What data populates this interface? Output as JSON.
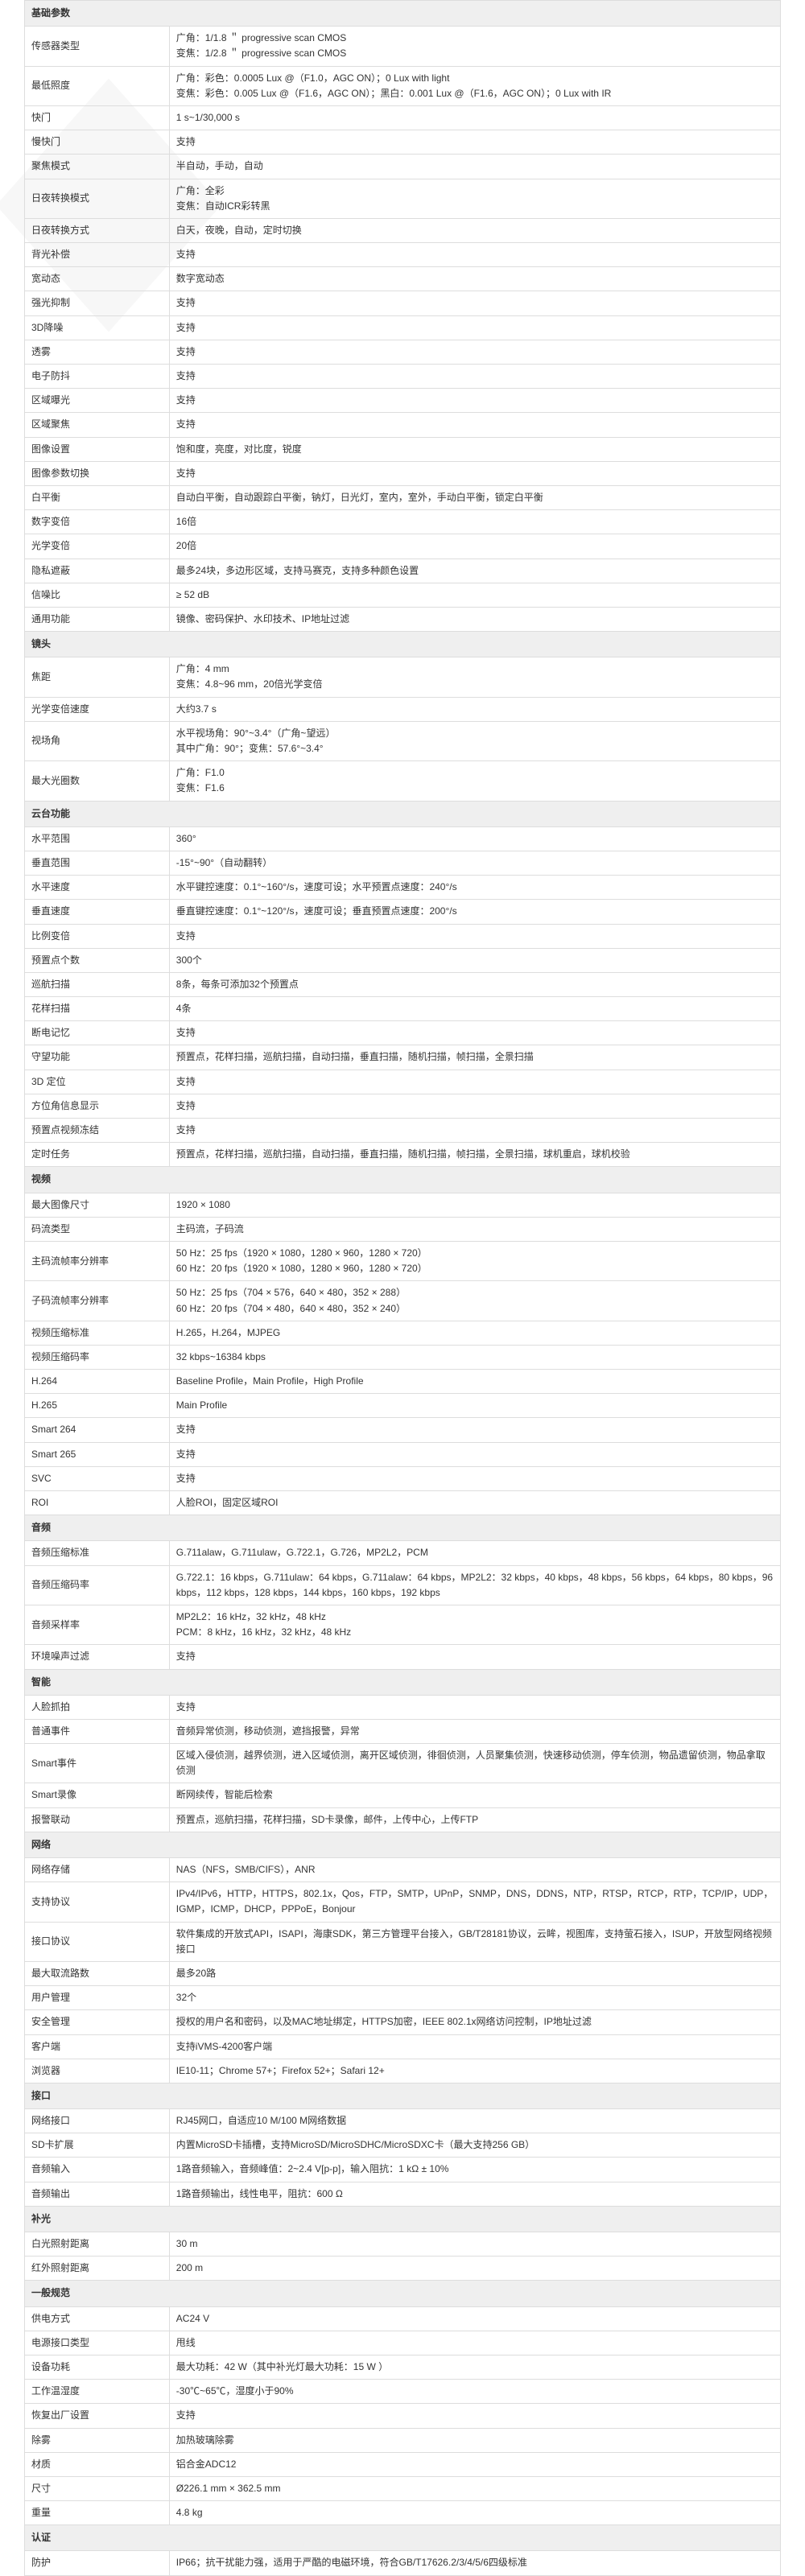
{
  "sections": [
    {
      "title": "基础参数",
      "rows": [
        {
          "label": "传感器类型",
          "value": "广角：1/1.8 ＂ progressive scan CMOS\n变焦：1/2.8 ＂ progressive scan CMOS"
        },
        {
          "label": "最低照度",
          "value": "广角：彩色：0.0005 Lux @（F1.0，AGC ON）；0 Lux with light\n变焦：彩色：0.005 Lux @（F1.6，AGC ON）；黑白：0.001 Lux @（F1.6，AGC ON）；0 Lux with IR"
        },
        {
          "label": "快门",
          "value": "1 s~1/30,000 s"
        },
        {
          "label": "慢快门",
          "value": "支持"
        },
        {
          "label": "聚焦模式",
          "value": "半自动，手动，自动"
        },
        {
          "label": "日夜转换模式",
          "value": "广角：全彩\n变焦：自动ICR彩转黑"
        },
        {
          "label": "日夜转换方式",
          "value": "白天，夜晚，自动，定时切换"
        },
        {
          "label": "背光补偿",
          "value": "支持"
        },
        {
          "label": "宽动态",
          "value": "数字宽动态"
        },
        {
          "label": "强光抑制",
          "value": "支持"
        },
        {
          "label": "3D降噪",
          "value": "支持"
        },
        {
          "label": "透雾",
          "value": "支持"
        },
        {
          "label": "电子防抖",
          "value": "支持"
        },
        {
          "label": "区域曝光",
          "value": "支持"
        },
        {
          "label": "区域聚焦",
          "value": "支持"
        },
        {
          "label": "图像设置",
          "value": "饱和度，亮度，对比度，锐度"
        },
        {
          "label": "图像参数切换",
          "value": "支持"
        },
        {
          "label": "白平衡",
          "value": "自动白平衡，自动跟踪白平衡，钠灯，日光灯，室内，室外，手动白平衡，锁定白平衡"
        },
        {
          "label": "数字变倍",
          "value": "16倍"
        },
        {
          "label": "光学变倍",
          "value": "20倍"
        },
        {
          "label": "隐私遮蔽",
          "value": "最多24块，多边形区域，支持马赛克，支持多种颜色设置"
        },
        {
          "label": "信噪比",
          "value": "≥ 52 dB"
        },
        {
          "label": "通用功能",
          "value": "镜像、密码保护、水印技术、IP地址过滤"
        }
      ]
    },
    {
      "title": "镜头",
      "rows": [
        {
          "label": "焦距",
          "value": "广角：4 mm\n变焦：4.8~96 mm，20倍光学变倍"
        },
        {
          "label": "光学变倍速度",
          "value": "大约3.7 s"
        },
        {
          "label": "视场角",
          "value": "水平视场角：90°~3.4°（广角~望远）\n其中广角：90°；变焦：57.6°~3.4°"
        },
        {
          "label": "最大光圈数",
          "value": "广角：F1.0\n变焦：F1.6"
        }
      ]
    },
    {
      "title": "云台功能",
      "rows": [
        {
          "label": "水平范围",
          "value": "360°"
        },
        {
          "label": "垂直范围",
          "value": "-15°~90°（自动翻转）"
        },
        {
          "label": "水平速度",
          "value": "水平键控速度：0.1°~160°/s，速度可设；水平预置点速度：240°/s"
        },
        {
          "label": "垂直速度",
          "value": "垂直键控速度：0.1°~120°/s，速度可设；垂直预置点速度：200°/s"
        },
        {
          "label": "比例变倍",
          "value": "支持"
        },
        {
          "label": "预置点个数",
          "value": "300个"
        },
        {
          "label": "巡航扫描",
          "value": "8条，每条可添加32个预置点"
        },
        {
          "label": "花样扫描",
          "value": "4条"
        },
        {
          "label": "断电记忆",
          "value": "支持"
        },
        {
          "label": "守望功能",
          "value": "预置点，花样扫描，巡航扫描，自动扫描，垂直扫描，随机扫描，帧扫描，全景扫描"
        },
        {
          "label": "3D 定位",
          "value": "支持"
        },
        {
          "label": "方位角信息显示",
          "value": "支持"
        },
        {
          "label": "预置点视频冻结",
          "value": "支持"
        },
        {
          "label": "定时任务",
          "value": "预置点，花样扫描，巡航扫描，自动扫描，垂直扫描，随机扫描，帧扫描，全景扫描，球机重启，球机校验"
        }
      ]
    },
    {
      "title": "视频",
      "rows": [
        {
          "label": "最大图像尺寸",
          "value": "1920 × 1080"
        },
        {
          "label": "码流类型",
          "value": "主码流，子码流"
        },
        {
          "label": "主码流帧率分辨率",
          "value": "50 Hz：25 fps（1920 × 1080，1280 × 960，1280 × 720）\n60 Hz：20 fps（1920 × 1080，1280 × 960，1280 × 720）"
        },
        {
          "label": "子码流帧率分辨率",
          "value": "50 Hz：25 fps（704 × 576，640 × 480，352 × 288）\n60 Hz：20 fps（704 × 480，640 × 480，352 × 240）"
        },
        {
          "label": "视频压缩标准",
          "value": "H.265，H.264，MJPEG"
        },
        {
          "label": "视频压缩码率",
          "value": "32 kbps~16384 kbps"
        },
        {
          "label": "H.264",
          "value": "Baseline Profile，Main Profile，High Profile"
        },
        {
          "label": "H.265",
          "value": "Main Profile"
        },
        {
          "label": "Smart 264",
          "value": "支持"
        },
        {
          "label": "Smart 265",
          "value": "支持"
        },
        {
          "label": "SVC",
          "value": "支持"
        },
        {
          "label": "ROI",
          "value": "人脸ROI，固定区域ROI"
        }
      ]
    },
    {
      "title": "音频",
      "rows": [
        {
          "label": "音频压缩标准",
          "value": "G.711alaw，G.711ulaw，G.722.1，G.726，MP2L2，PCM"
        },
        {
          "label": "音频压缩码率",
          "value": "G.722.1：16 kbps，G.711ulaw：64 kbps，G.711alaw：64 kbps，MP2L2：32 kbps，40 kbps，48 kbps，56 kbps，64 kbps，80 kbps，96 kbps，112 kbps，128 kbps，144 kbps，160 kbps，192 kbps"
        },
        {
          "label": "音频采样率",
          "value": "MP2L2：16 kHz，32 kHz，48 kHz\nPCM：8 kHz，16 kHz，32 kHz，48 kHz"
        },
        {
          "label": "环境噪声过滤",
          "value": "支持"
        }
      ]
    },
    {
      "title": "智能",
      "rows": [
        {
          "label": "人脸抓拍",
          "value": "支持"
        },
        {
          "label": "普通事件",
          "value": "音频异常侦测，移动侦测，遮挡报警，异常"
        },
        {
          "label": "Smart事件",
          "value": "区域入侵侦测，越界侦测，进入区域侦测，离开区域侦测，徘徊侦测，人员聚集侦测，快速移动侦测，停车侦测，物品遗留侦测，物品拿取侦测"
        },
        {
          "label": "Smart录像",
          "value": "断网续传，智能后检索"
        },
        {
          "label": "报警联动",
          "value": "预置点，巡航扫描，花样扫描，SD卡录像，邮件，上传中心，上传FTP"
        }
      ]
    },
    {
      "title": "网络",
      "rows": [
        {
          "label": "网络存储",
          "value": "NAS（NFS，SMB/CIFS），ANR"
        },
        {
          "label": "支持协议",
          "value": "IPv4/IPv6，HTTP，HTTPS，802.1x，Qos，FTP，SMTP，UPnP，SNMP，DNS，DDNS，NTP，RTSP，RTCP，RTP，TCP/IP，UDP，IGMP，ICMP，DHCP，PPPoE，Bonjour"
        },
        {
          "label": "接口协议",
          "value": "软件集成的开放式API，ISAPI，海康SDK，第三方管理平台接入，GB/T28181协议，云眸，视图库，支持萤石接入，ISUP，开放型网络视频接口"
        },
        {
          "label": "最大取流路数",
          "value": "最多20路"
        },
        {
          "label": "用户管理",
          "value": "32个"
        },
        {
          "label": "安全管理",
          "value": "授权的用户名和密码，以及MAC地址绑定，HTTPS加密，IEEE 802.1x网络访问控制，IP地址过滤"
        },
        {
          "label": "客户端",
          "value": "支持iVMS-4200客户端"
        },
        {
          "label": "浏览器",
          "value": "IE10-11；Chrome 57+；Firefox 52+；Safari 12+"
        }
      ]
    },
    {
      "title": "接口",
      "rows": [
        {
          "label": "网络接口",
          "value": "RJ45网口，自适应10 M/100 M网络数据"
        },
        {
          "label": "SD卡扩展",
          "value": "内置MicroSD卡插槽，支持MicroSD/MicroSDHC/MicroSDXC卡（最大支持256 GB）"
        },
        {
          "label": "音频输入",
          "value": "1路音频输入，音频峰值：2~2.4 V[p-p]，输入阻抗：1 kΩ ± 10%"
        },
        {
          "label": "音频输出",
          "value": "1路音频输出，线性电平，阻抗：600 Ω"
        }
      ]
    },
    {
      "title": "补光",
      "rows": [
        {
          "label": "白光照射距离",
          "value": "30 m"
        },
        {
          "label": "红外照射距离",
          "value": "200 m"
        }
      ]
    },
    {
      "title": "一般规范",
      "rows": [
        {
          "label": "供电方式",
          "value": "AC24 V"
        },
        {
          "label": "电源接口类型",
          "value": "甩线"
        },
        {
          "label": "设备功耗",
          "value": "最大功耗：42 W（其中补光灯最大功耗：15 W ）"
        },
        {
          "label": "工作温湿度",
          "value": "-30℃~65℃，湿度小于90%"
        },
        {
          "label": "恢复出厂设置",
          "value": "支持"
        },
        {
          "label": "除雾",
          "value": "加热玻璃除雾"
        },
        {
          "label": "材质",
          "value": "铝合金ADC12"
        },
        {
          "label": "尺寸",
          "value": "Ø226.1 mm × 362.5 mm"
        },
        {
          "label": "重量",
          "value": "4.8 kg"
        }
      ]
    },
    {
      "title": "认证",
      "rows": [
        {
          "label": "防护",
          "value": "IP66；抗干扰能力强，适用于严酷的电磁环境，符合GB/T17626.2/3/4/5/6四级标准"
        }
      ]
    }
  ]
}
